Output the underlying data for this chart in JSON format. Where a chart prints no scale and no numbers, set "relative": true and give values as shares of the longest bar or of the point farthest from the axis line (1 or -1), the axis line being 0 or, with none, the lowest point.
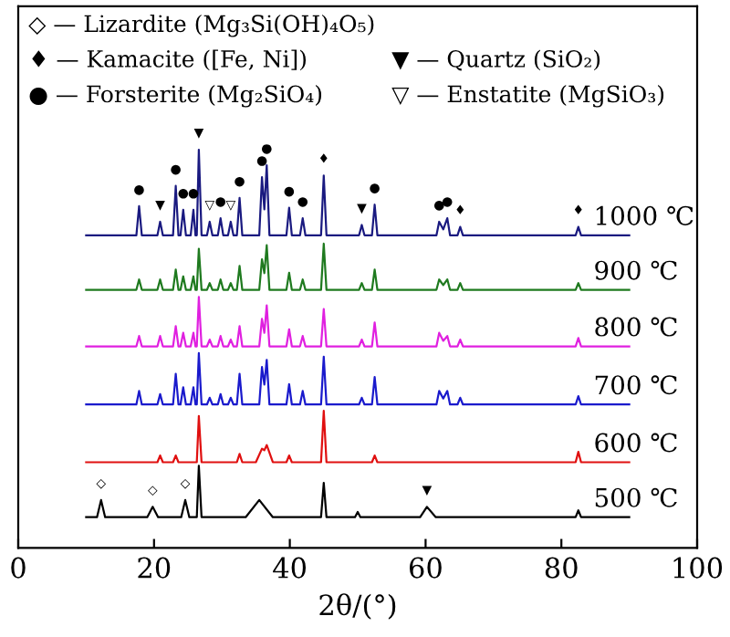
{
  "chart_data": {
    "type": "line",
    "xlabel": "2θ/(°)",
    "xlim": [
      0,
      100
    ],
    "xticks": [
      0,
      20,
      40,
      60,
      80,
      100
    ],
    "relative": true,
    "grid": false,
    "legend": false,
    "series": [
      {
        "name": "1000 ℃",
        "color": "#1a1a80",
        "x": [
          10,
          17.4,
          17.8,
          18.2,
          20.5,
          20.9,
          21.3,
          22.8,
          23.2,
          23.6,
          23.9,
          24.3,
          24.7,
          25.4,
          25.8,
          26.1,
          26.3,
          26.6,
          27.0,
          27.8,
          28.2,
          28.6,
          29.4,
          29.8,
          30.2,
          30.9,
          31.3,
          31.7,
          32.2,
          32.6,
          33.0,
          35.5,
          35.9,
          36.25,
          36.6,
          37.0,
          39.5,
          39.9,
          40.3,
          41.5,
          41.9,
          42.3,
          44.6,
          45.0,
          45.4,
          50.2,
          50.6,
          51.0,
          52.1,
          52.5,
          52.9,
          61.6,
          62.0,
          62.6,
          63.2,
          63.6,
          64.7,
          65.1,
          65.5,
          82.1,
          82.5,
          82.9,
          90
        ],
        "values": [
          0.785,
          0.785,
          0.858,
          0.785,
          0.785,
          0.819,
          0.785,
          0.785,
          0.909,
          0.785,
          0.785,
          0.849,
          0.785,
          0.785,
          0.849,
          0.785,
          0.785,
          1.0,
          0.785,
          0.785,
          0.819,
          0.785,
          0.785,
          0.828,
          0.785,
          0.785,
          0.819,
          0.785,
          0.785,
          0.879,
          0.785,
          0.785,
          0.931,
          0.85,
          0.961,
          0.785,
          0.785,
          0.854,
          0.785,
          0.785,
          0.828,
          0.785,
          0.785,
          0.935,
          0.785,
          0.785,
          0.811,
          0.785,
          0.785,
          0.862,
          0.785,
          0.785,
          0.819,
          0.8,
          0.828,
          0.785,
          0.785,
          0.806,
          0.785,
          0.785,
          0.806,
          0.785,
          0.785
        ]
      },
      {
        "name": "900 ℃",
        "color": "#1f7a1f",
        "x": [
          10,
          17.4,
          17.8,
          18.2,
          20.5,
          20.9,
          21.3,
          22.8,
          23.2,
          23.6,
          23.9,
          24.3,
          24.7,
          25.4,
          25.8,
          26.1,
          26.3,
          26.6,
          27.0,
          27.8,
          28.2,
          28.6,
          29.4,
          29.8,
          30.2,
          30.9,
          31.3,
          31.7,
          32.2,
          32.6,
          33.0,
          35.5,
          35.9,
          36.25,
          36.6,
          37.0,
          39.5,
          39.9,
          40.3,
          41.5,
          41.9,
          42.3,
          44.6,
          45.0,
          45.4,
          50.2,
          50.6,
          51.0,
          52.1,
          52.5,
          52.9,
          61.6,
          62.0,
          62.6,
          63.2,
          63.6,
          64.7,
          65.1,
          65.5,
          82.1,
          82.5,
          82.9,
          90
        ],
        "values": [
          0.648,
          0.648,
          0.674,
          0.648,
          0.648,
          0.674,
          0.648,
          0.648,
          0.699,
          0.648,
          0.648,
          0.682,
          0.648,
          0.648,
          0.682,
          0.648,
          0.648,
          0.751,
          0.648,
          0.648,
          0.665,
          0.648,
          0.648,
          0.674,
          0.648,
          0.648,
          0.665,
          0.648,
          0.648,
          0.708,
          0.648,
          0.648,
          0.725,
          0.69,
          0.76,
          0.648,
          0.648,
          0.691,
          0.648,
          0.648,
          0.674,
          0.648,
          0.648,
          0.764,
          0.648,
          0.648,
          0.665,
          0.648,
          0.648,
          0.699,
          0.648,
          0.648,
          0.674,
          0.66,
          0.674,
          0.648,
          0.648,
          0.665,
          0.648,
          0.648,
          0.665,
          0.648,
          0.648
        ]
      },
      {
        "name": "800 ℃",
        "color": "#e020e0",
        "x": [
          10,
          17.4,
          17.8,
          18.2,
          20.5,
          20.9,
          21.3,
          22.8,
          23.2,
          23.6,
          23.9,
          24.3,
          24.7,
          25.4,
          25.8,
          26.1,
          26.3,
          26.6,
          27.0,
          27.8,
          28.2,
          28.6,
          29.4,
          29.8,
          30.2,
          30.9,
          31.3,
          31.7,
          32.2,
          32.6,
          33.0,
          35.5,
          35.9,
          36.25,
          36.6,
          37.0,
          39.5,
          39.9,
          40.3,
          41.5,
          41.9,
          42.3,
          44.6,
          45.0,
          45.4,
          50.2,
          50.6,
          51.0,
          52.1,
          52.5,
          52.9,
          61.6,
          62.0,
          62.6,
          63.2,
          63.6,
          64.7,
          65.1,
          65.5,
          82.1,
          82.5,
          82.9,
          90
        ],
        "values": [
          0.506,
          0.506,
          0.532,
          0.506,
          0.506,
          0.532,
          0.506,
          0.506,
          0.557,
          0.506,
          0.506,
          0.54,
          0.506,
          0.506,
          0.54,
          0.506,
          0.506,
          0.63,
          0.506,
          0.506,
          0.523,
          0.506,
          0.506,
          0.532,
          0.506,
          0.506,
          0.523,
          0.506,
          0.506,
          0.557,
          0.506,
          0.506,
          0.575,
          0.54,
          0.609,
          0.506,
          0.506,
          0.549,
          0.506,
          0.506,
          0.532,
          0.506,
          0.506,
          0.6,
          0.506,
          0.506,
          0.523,
          0.506,
          0.506,
          0.566,
          0.506,
          0.506,
          0.54,
          0.52,
          0.532,
          0.506,
          0.506,
          0.523,
          0.506,
          0.506,
          0.527,
          0.506,
          0.506
        ]
      },
      {
        "name": "700 ℃",
        "color": "#1a1acc",
        "x": [
          10,
          17.4,
          17.8,
          18.2,
          20.5,
          20.9,
          21.3,
          22.8,
          23.2,
          23.6,
          23.9,
          24.3,
          24.7,
          25.4,
          25.8,
          26.1,
          26.3,
          26.6,
          27.0,
          27.8,
          28.2,
          28.6,
          29.4,
          29.8,
          30.2,
          30.9,
          31.3,
          31.7,
          32.2,
          32.6,
          33.0,
          35.5,
          35.9,
          36.25,
          36.6,
          37.0,
          39.5,
          39.9,
          40.3,
          41.5,
          41.9,
          42.3,
          44.6,
          45.0,
          45.4,
          50.2,
          50.6,
          51.0,
          52.1,
          52.5,
          52.9,
          61.6,
          62.0,
          62.6,
          63.2,
          63.6,
          64.7,
          65.1,
          65.5,
          82.1,
          82.5,
          82.9,
          90
        ],
        "values": [
          0.36,
          0.36,
          0.394,
          0.36,
          0.36,
          0.386,
          0.36,
          0.36,
          0.437,
          0.36,
          0.36,
          0.403,
          0.36,
          0.36,
          0.403,
          0.36,
          0.36,
          0.489,
          0.36,
          0.36,
          0.377,
          0.36,
          0.36,
          0.386,
          0.36,
          0.36,
          0.377,
          0.36,
          0.36,
          0.437,
          0.36,
          0.36,
          0.454,
          0.41,
          0.472,
          0.36,
          0.36,
          0.411,
          0.36,
          0.36,
          0.394,
          0.36,
          0.36,
          0.48,
          0.36,
          0.36,
          0.377,
          0.36,
          0.36,
          0.429,
          0.36,
          0.36,
          0.394,
          0.375,
          0.394,
          0.36,
          0.36,
          0.377,
          0.36,
          0.36,
          0.381,
          0.36,
          0.36
        ]
      },
      {
        "name": "600 ℃",
        "color": "#e01010",
        "x": [
          10,
          20.5,
          20.9,
          21.3,
          22.8,
          23.2,
          23.6,
          26.3,
          26.6,
          27.0,
          32.2,
          32.6,
          33.0,
          35.0,
          35.9,
          36.25,
          36.6,
          37.5,
          39.5,
          39.9,
          40.3,
          44.6,
          45.0,
          45.4,
          52.1,
          52.5,
          52.9,
          82.1,
          82.5,
          82.9,
          90
        ],
        "values": [
          0.215,
          0.215,
          0.232,
          0.215,
          0.215,
          0.232,
          0.215,
          0.215,
          0.331,
          0.215,
          0.215,
          0.236,
          0.215,
          0.215,
          0.249,
          0.245,
          0.258,
          0.215,
          0.215,
          0.232,
          0.215,
          0.215,
          0.344,
          0.215,
          0.215,
          0.232,
          0.215,
          0.215,
          0.241,
          0.215,
          0.215
        ]
      },
      {
        "name": "500 ℃",
        "color": "#000000",
        "x": [
          10,
          11.6,
          12.2,
          12.8,
          19.0,
          19.8,
          20.6,
          24.0,
          24.6,
          25.2,
          26.3,
          26.6,
          27.0,
          33.5,
          35.5,
          37.5,
          44.6,
          45.0,
          45.4,
          49.6,
          50.0,
          50.4,
          59.2,
          60.2,
          61.5,
          82.1,
          82.5,
          82.9,
          90
        ],
        "values": [
          0.077,
          0.077,
          0.12,
          0.077,
          0.077,
          0.103,
          0.077,
          0.077,
          0.12,
          0.077,
          0.077,
          0.206,
          0.077,
          0.077,
          0.12,
          0.077,
          0.077,
          0.163,
          0.077,
          0.077,
          0.09,
          0.077,
          0.077,
          0.103,
          0.077,
          0.077,
          0.094,
          0.077,
          0.077
        ]
      }
    ],
    "annotations": [
      "◇ — Lizardite (Mg₃Si(OH)₄O₅)",
      "♦ — Kamacite ([Fe, Ni])",
      "● — Forsterite (Mg₂SiO₄)",
      "▼ — Quartz (SiO₂)",
      "▽ — Enstatite (MgSiO₃)",
      {
        "text": "●",
        "x": 17.8,
        "y": 0.858
      },
      {
        "text": "▼",
        "x": 20.9,
        "y": 0.819
      },
      {
        "text": "●",
        "x": 23.2,
        "y": 0.909
      },
      {
        "text": "●",
        "x": 24.3,
        "y": 0.849
      },
      {
        "text": "●",
        "x": 25.8,
        "y": 0.849
      },
      {
        "text": "▼",
        "x": 26.6,
        "y": 1.0
      },
      {
        "text": "▽",
        "x": 28.2,
        "y": 0.819
      },
      {
        "text": "●",
        "x": 29.8,
        "y": 0.828
      },
      {
        "text": "▽",
        "x": 31.3,
        "y": 0.819
      },
      {
        "text": "●",
        "x": 32.6,
        "y": 0.879
      },
      {
        "text": "●",
        "x": 35.9,
        "y": 0.931
      },
      {
        "text": "●",
        "x": 36.6,
        "y": 0.961
      },
      {
        "text": "●",
        "x": 39.9,
        "y": 0.854
      },
      {
        "text": "●",
        "x": 41.9,
        "y": 0.828
      },
      {
        "text": "♦",
        "x": 45.0,
        "y": 0.935
      },
      {
        "text": "▼",
        "x": 50.6,
        "y": 0.811
      },
      {
        "text": "●",
        "x": 52.5,
        "y": 0.862
      },
      {
        "text": "●",
        "x": 62.0,
        "y": 0.819
      },
      {
        "text": "●",
        "x": 63.2,
        "y": 0.828
      },
      {
        "text": "♦",
        "x": 65.1,
        "y": 0.806
      },
      {
        "text": "♦",
        "x": 82.5,
        "y": 0.806
      },
      {
        "text": "◇",
        "x": 12.2,
        "y": 0.12
      },
      {
        "text": "◇",
        "x": 19.8,
        "y": 0.103
      },
      {
        "text": "◇",
        "x": 24.6,
        "y": 0.12
      },
      {
        "text": "▼",
        "x": 60.2,
        "y": 0.103
      }
    ]
  }
}
